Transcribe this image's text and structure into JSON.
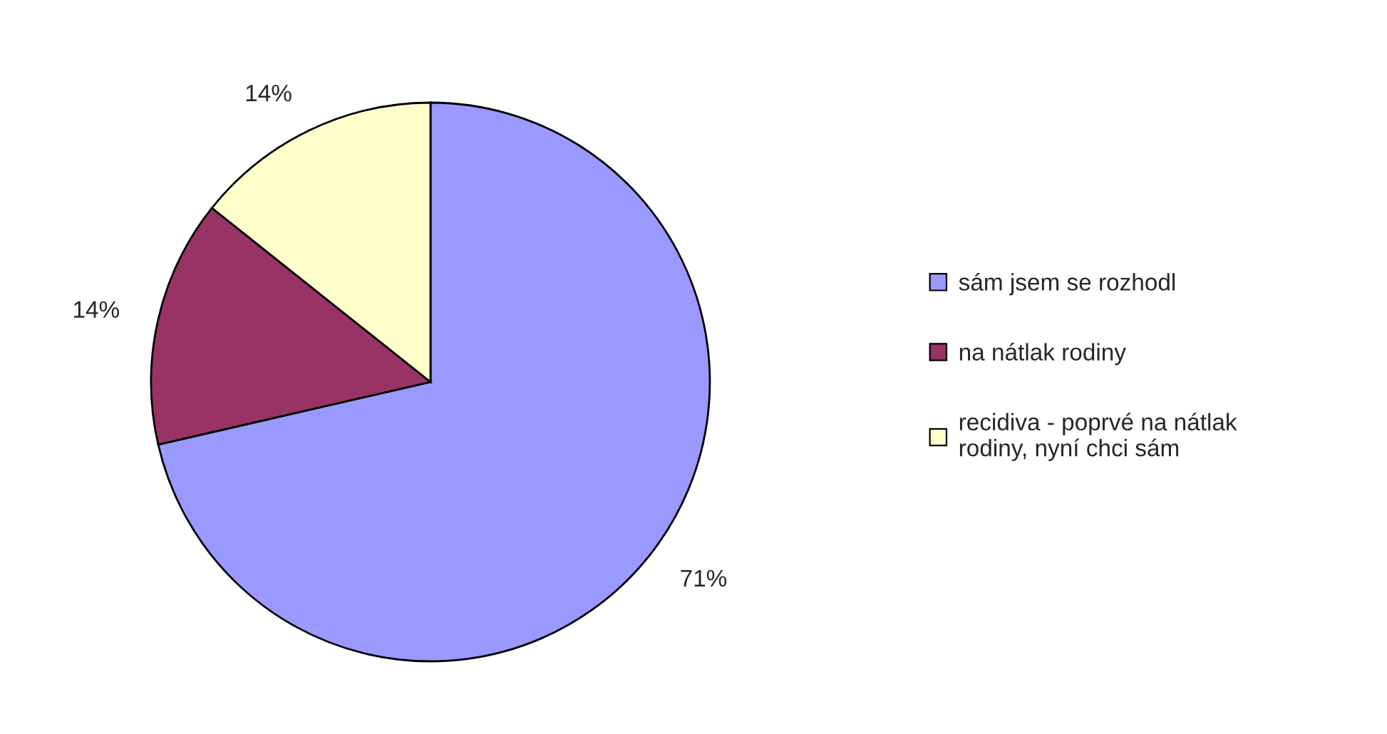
{
  "chart_data": {
    "type": "pie",
    "categories": [
      "sám jsem se rozhodl",
      "na nátlak rodiny",
      "recidiva - poprvé na nátlak\nrodiny, nyní chci sám"
    ],
    "values": [
      71.4,
      14.3,
      14.3
    ],
    "value_labels": [
      "71%",
      "14%",
      "14%"
    ],
    "colors": [
      "#9999ff",
      "#993366",
      "#ffffcc"
    ],
    "legend": "right"
  }
}
